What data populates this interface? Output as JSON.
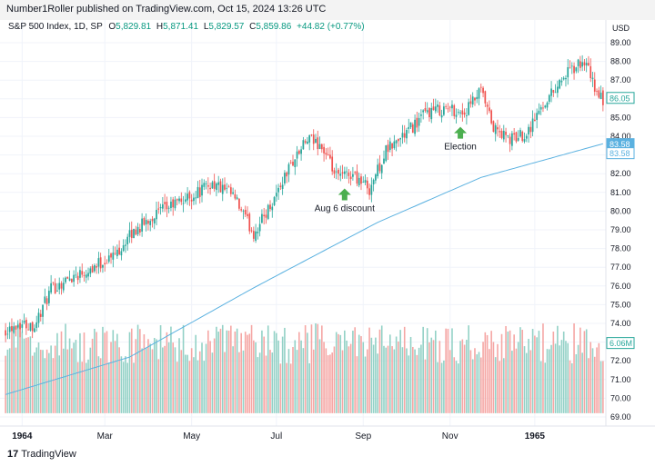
{
  "header": {
    "published_text": "Number1Roller published on TradingView.com, Oct 15, 2024 13:26 UTC"
  },
  "legend": {
    "symbol": "S&P 500 Index, 1D, SP",
    "open_label": "O",
    "open": "5,829.81",
    "high_label": "H",
    "high": "5,871.41",
    "low_label": "L",
    "low": "5,829.57",
    "close_label": "C",
    "close": "5,859.86",
    "change": "+44.82 (+0.77%)"
  },
  "footer": {
    "logo_mark": "17",
    "logo_text": "TradingView"
  },
  "chart_data": {
    "type": "candlestick",
    "title": "S&P 500 Index, 1D, SP",
    "currency": "USD",
    "y_axis": {
      "position": "right",
      "ticks": [
        69,
        70,
        71,
        72,
        73,
        74,
        75,
        76,
        77,
        78,
        79,
        80,
        81,
        82,
        83,
        84,
        85,
        86,
        87,
        88,
        89
      ],
      "tick_labels": [
        "69.00",
        "70.00",
        "71.00",
        "72.00",
        "73.00",
        "74.00",
        "75.00",
        "76.00",
        "77.00",
        "78.00",
        "79.00",
        "80.00",
        "81.00",
        "82.00",
        "83.00",
        "84.00",
        "85.00",
        "86.00",
        "87.00",
        "88.00",
        "89.00"
      ],
      "range": [
        68.5,
        89.5
      ]
    },
    "x_axis": {
      "labels": [
        {
          "label": "1964",
          "bold": true,
          "index": 8
        },
        {
          "label": "Mar",
          "bold": false,
          "index": 48
        },
        {
          "label": "May",
          "bold": false,
          "index": 90
        },
        {
          "label": "Jul",
          "bold": false,
          "index": 131
        },
        {
          "label": "Sep",
          "bold": false,
          "index": 173
        },
        {
          "label": "Nov",
          "bold": false,
          "index": 215
        },
        {
          "label": "1965",
          "bold": true,
          "index": 256
        }
      ],
      "bar_count": 290
    },
    "price_anchors": [
      [
        0,
        73.7
      ],
      [
        6,
        74.0
      ],
      [
        14,
        73.9
      ],
      [
        22,
        75.8
      ],
      [
        32,
        76.5
      ],
      [
        42,
        77.0
      ],
      [
        52,
        77.6
      ],
      [
        62,
        78.9
      ],
      [
        72,
        79.8
      ],
      [
        82,
        80.4
      ],
      [
        90,
        80.8
      ],
      [
        100,
        81.5
      ],
      [
        110,
        80.8
      ],
      [
        120,
        78.8
      ],
      [
        128,
        80.3
      ],
      [
        138,
        82.5
      ],
      [
        146,
        83.8
      ],
      [
        152,
        83.6
      ],
      [
        160,
        81.8
      ],
      [
        168,
        82.0
      ],
      [
        176,
        81.2
      ],
      [
        184,
        83.2
      ],
      [
        194,
        84.2
      ],
      [
        204,
        85.3
      ],
      [
        214,
        85.5
      ],
      [
        222,
        85.2
      ],
      [
        230,
        86.4
      ],
      [
        236,
        84.4
      ],
      [
        244,
        83.8
      ],
      [
        252,
        84.2
      ],
      [
        260,
        85.7
      ],
      [
        270,
        87.2
      ],
      [
        280,
        88.0
      ],
      [
        286,
        86.3
      ],
      [
        289,
        85.9
      ]
    ],
    "moving_average": {
      "name": "",
      "color": "#5ab1e0",
      "points": [
        [
          0,
          70.2
        ],
        [
          60,
          72.2
        ],
        [
          120,
          75.9
        ],
        [
          180,
          79.4
        ],
        [
          230,
          81.8
        ],
        [
          289,
          83.6
        ]
      ]
    },
    "volume": {
      "last_label": "6.06M",
      "pane_range": [
        69.2,
        74.0
      ]
    },
    "price_tags": [
      {
        "value": 86.05,
        "label": "86.05",
        "style": "filled-border",
        "color": "#26a69a"
      },
      {
        "value": 83.58,
        "label": "83.58",
        "style": "filled",
        "color": "#5ab1e0"
      },
      {
        "value": 83.58,
        "label": "83.58",
        "style": "outline",
        "color": "#5ab1e0"
      }
    ],
    "annotations": [
      {
        "text": "Aug 6 discount",
        "index": 164,
        "value": 81.4,
        "arrow": "up",
        "color": "#4caf50"
      },
      {
        "text": "Election",
        "index": 220,
        "value": 84.7,
        "arrow": "up",
        "color": "#4caf50"
      }
    ],
    "colors": {
      "up": "#26a69a",
      "down": "#ef5350",
      "volume_up": "#92d1c6",
      "volume_down": "#f5a6a4",
      "grid": "#f0f3fa",
      "text": "#131722"
    }
  }
}
